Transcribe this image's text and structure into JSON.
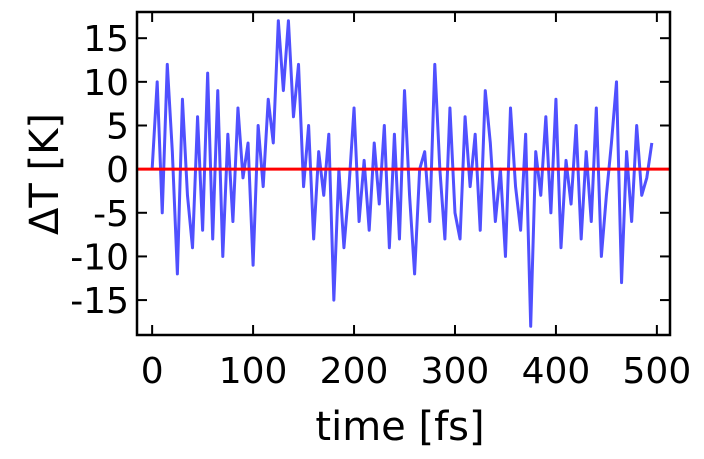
{
  "chart_data": {
    "type": "line",
    "x_label": "time [fs]",
    "y_label": "ΔT [K]",
    "x": [
      0,
      5,
      10,
      15,
      20,
      25,
      30,
      35,
      40,
      45,
      50,
      55,
      60,
      65,
      70,
      75,
      80,
      85,
      90,
      95,
      100,
      105,
      110,
      115,
      120,
      125,
      130,
      135,
      140,
      145,
      150,
      155,
      160,
      165,
      170,
      175,
      180,
      185,
      190,
      195,
      200,
      205,
      210,
      215,
      220,
      225,
      230,
      235,
      240,
      245,
      250,
      255,
      260,
      265,
      270,
      275,
      280,
      285,
      290,
      295,
      300,
      305,
      310,
      315,
      320,
      325,
      330,
      335,
      340,
      345,
      350,
      355,
      360,
      365,
      370,
      375,
      380,
      385,
      390,
      395,
      400,
      405,
      410,
      415,
      420,
      425,
      430,
      435,
      440,
      445,
      450,
      455,
      460,
      465,
      470,
      475,
      480,
      485,
      490,
      495
    ],
    "series": [
      {
        "color": "#5050ff",
        "values": [
          0,
          10,
          -5,
          12,
          2,
          -12,
          8,
          -3,
          -9,
          6,
          -7,
          11,
          -8,
          9,
          -10,
          4,
          -6,
          7,
          -1,
          3,
          -11,
          5,
          -2,
          8,
          3,
          17,
          9,
          17,
          6,
          12,
          -2,
          5,
          -8,
          2,
          -3,
          4,
          -15,
          0,
          -9,
          -2,
          7,
          -6,
          1,
          -7,
          3,
          -4,
          5,
          -9,
          4,
          -8,
          9,
          -3,
          -12,
          0,
          2,
          -6,
          12,
          0,
          -8,
          7,
          -5,
          -8,
          6,
          -2,
          4,
          -7,
          9,
          3,
          -6,
          0,
          -10,
          7,
          -2,
          -7,
          4,
          -18,
          2,
          -3,
          6,
          -5,
          8,
          -9,
          1,
          -4,
          5,
          -8,
          2,
          -6,
          7,
          -10,
          -3,
          3,
          10,
          -13,
          2,
          -6,
          5,
          -3,
          -1,
          3
        ]
      }
    ],
    "reference_line": {
      "value": 0,
      "color": "#ff0000"
    },
    "xlim": [
      -15,
      513
    ],
    "ylim": [
      -19,
      18
    ],
    "xticks": [
      0,
      100,
      200,
      300,
      400,
      500
    ],
    "yticks": [
      -15,
      -10,
      -5,
      0,
      5,
      10,
      15
    ]
  }
}
